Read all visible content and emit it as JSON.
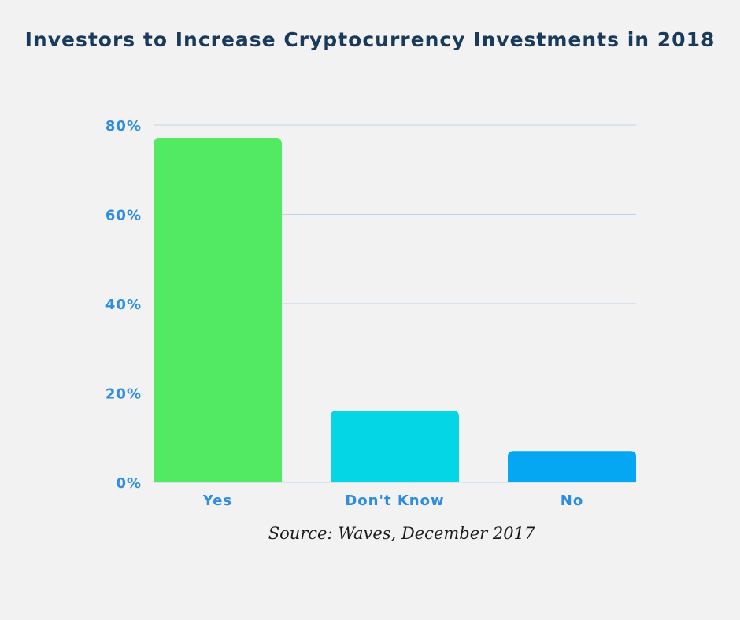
{
  "chart_data": {
    "type": "bar",
    "title": "Investors to Increase Cryptocurrency Investments in 2018",
    "categories": [
      "Yes",
      "Don't Know",
      "No"
    ],
    "values": [
      77,
      16,
      7
    ],
    "colors": [
      "#52ea62",
      "#05d6e6",
      "#06a7f2"
    ],
    "yticks": [
      "0%",
      "20%",
      "40%",
      "60%",
      "80%"
    ],
    "ytick_values": [
      0,
      20,
      40,
      60,
      80
    ],
    "ylim": [
      0,
      80
    ],
    "grid": true,
    "grid_color": "#bcd5ee",
    "label_color": "#2e8de0",
    "xlabel": "",
    "ylabel": "",
    "source": "Source: Waves, December 2017"
  }
}
